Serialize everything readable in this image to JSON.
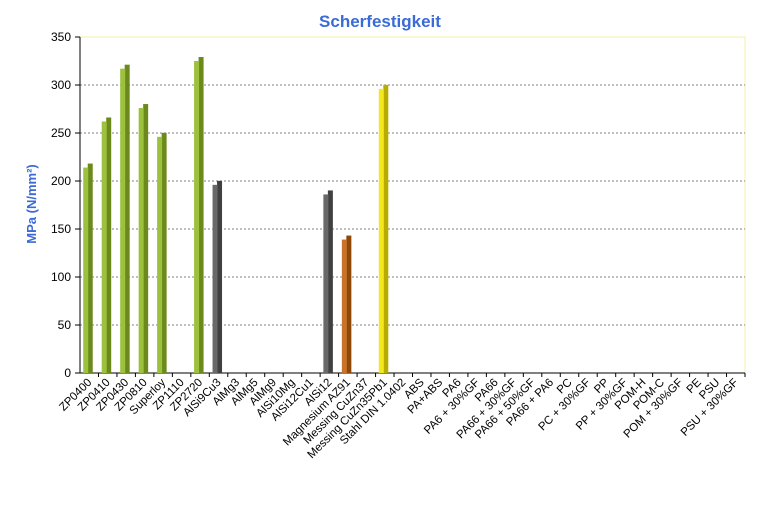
{
  "chart_data": {
    "type": "bar",
    "title": "Scherfestigkeit",
    "xlabel": "",
    "ylabel": "MPa (N/mm²)",
    "ylim": [
      0,
      350
    ],
    "yticks": [
      0,
      50,
      100,
      150,
      200,
      250,
      300,
      350
    ],
    "grid": true,
    "legend": "none",
    "categories": [
      "ZP0400",
      "ZP0410",
      "ZP0430",
      "ZP0810",
      "Superloy",
      "ZP1110",
      "ZP2720",
      "AlSi9Cu3",
      "AlMg3",
      "AlMg5",
      "AlMg9",
      "AlSi10Mg",
      "AlSi12Cu1",
      "AlSi12",
      "Magnesium AZ91",
      "Messing CuZn37",
      "Messing CuZn35Pb1",
      "Stahl DIN 1.0402",
      "ABS",
      "PA+ABS",
      "PA6",
      "PA6 + 30%GF",
      "PA66",
      "PA66 + 30%GF",
      "PA66 + 50%GF",
      "PA66 + PA6",
      "PC",
      "PC + 30%GF",
      "PP",
      "PP + 30%GF",
      "POM-H",
      "POM-C",
      "POM + 30%GF",
      "PE",
      "PSU",
      "PSU + 30%GF"
    ],
    "values": [
      214,
      262,
      317,
      276,
      246,
      null,
      325,
      196,
      null,
      null,
      null,
      null,
      null,
      186,
      139,
      null,
      296,
      null,
      null,
      null,
      null,
      null,
      null,
      null,
      null,
      null,
      null,
      null,
      null,
      null,
      null,
      null,
      null,
      null,
      null,
      null
    ],
    "bar_colors": [
      "#8fb824",
      "#8fb824",
      "#8fb824",
      "#8fb824",
      "#8fb824",
      "#8fb824",
      "#8fb824",
      "#555555",
      "#555555",
      "#555555",
      "#555555",
      "#555555",
      "#555555",
      "#555555",
      "#c0600c",
      "#c0600c",
      "#f2e600",
      "#8a8a8a",
      "#8fb824",
      "#8fb824",
      "#8fb824",
      "#8fb824",
      "#8fb824",
      "#8fb824",
      "#8fb824",
      "#8fb824",
      "#8fb824",
      "#8fb824",
      "#8fb824",
      "#8fb824",
      "#8fb824",
      "#8fb824",
      "#8fb824",
      "#8fb824",
      "#8fb824",
      "#8fb824"
    ],
    "colors": {
      "title": "#3a6bd6",
      "axis_label": "#3a6bd6",
      "plot_border": "#f2f2a8",
      "gridline": "#808080"
    }
  }
}
